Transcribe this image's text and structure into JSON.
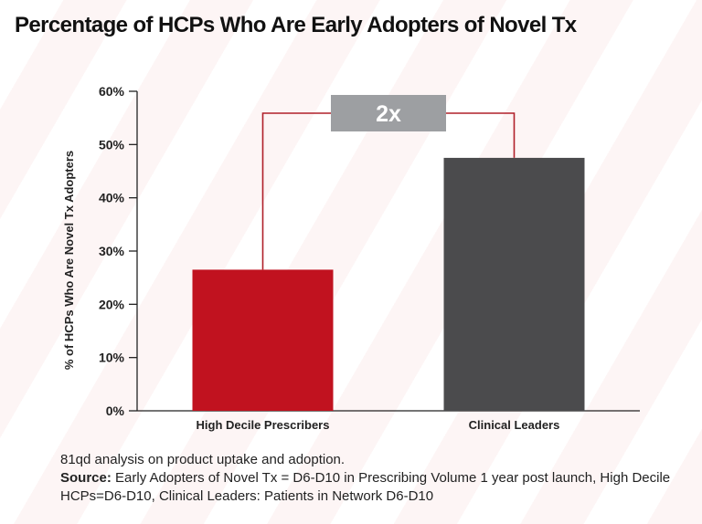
{
  "title": "Percentage of HCPs Who Are Early Adopters of Novel Tx",
  "chart_data": {
    "type": "bar",
    "categories": [
      "High Decile Prescribers",
      "Clinical Leaders"
    ],
    "values": [
      26.5,
      47.5
    ],
    "bar_colors": [
      "#c1121f",
      "#4b4b4d"
    ],
    "ylabel": "% of HCPs Who Are Novel Tx Adopters",
    "ylim": [
      0,
      60
    ],
    "yticks": [
      0,
      10,
      20,
      30,
      40,
      50,
      60
    ],
    "ytick_labels": [
      "0%",
      "10%",
      "20%",
      "30%",
      "40%",
      "50%",
      "60%"
    ],
    "grid": false,
    "annotation": {
      "text": "2x",
      "box_color": "#9d9fa2",
      "bracket_color": "#b0202a"
    }
  },
  "footnote": {
    "line1": "81qd analysis on product uptake and adoption.",
    "source_label": "Source:",
    "source_text": " Early Adopters of Novel Tx = D6-D10 in Prescribing Volume 1 year post launch, High Decile HCPs=D6-D10, Clinical Leaders: Patients in Network D6-D10"
  }
}
